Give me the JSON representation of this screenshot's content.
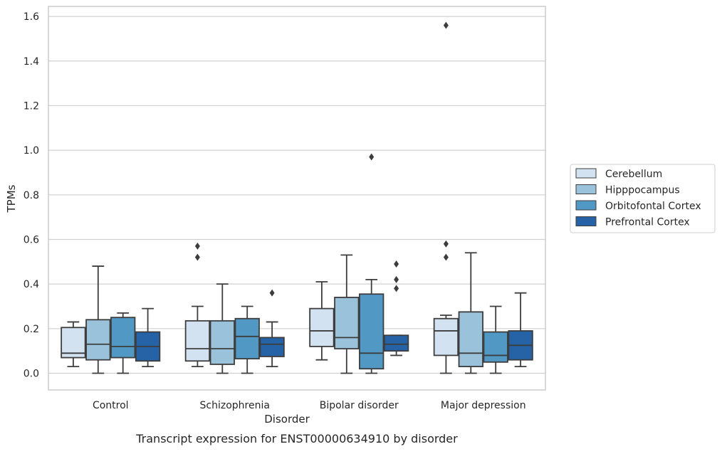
{
  "chart_data": {
    "type": "box",
    "caption": "Transcript expression for ENST00000634910 by disorder",
    "xlabel": "Disorder",
    "ylabel": "TPMs",
    "ylim": [
      -0.075,
      1.645
    ],
    "yticks": [
      0.0,
      0.2,
      0.4,
      0.6,
      0.8,
      1.0,
      1.2,
      1.4,
      1.6
    ],
    "ytick_labels": [
      "0.0",
      "0.2",
      "0.4",
      "0.6",
      "0.8",
      "1.0",
      "1.2",
      "1.4",
      "1.6"
    ],
    "grid": "horizontal",
    "legend_position": "right",
    "categories": [
      "Control",
      "Schizophrenia",
      "Bipolar disorder",
      "Major depression"
    ],
    "series": [
      {
        "name": "Cerebellum",
        "color": "#d3e2f0",
        "boxes": [
          {
            "whisker_low": 0.03,
            "q1": 0.07,
            "median": 0.09,
            "q3": 0.205,
            "whisker_high": 0.23,
            "outliers": []
          },
          {
            "whisker_low": 0.03,
            "q1": 0.055,
            "median": 0.11,
            "q3": 0.235,
            "whisker_high": 0.3,
            "outliers": [
              0.52,
              0.57
            ]
          },
          {
            "whisker_low": 0.06,
            "q1": 0.12,
            "median": 0.19,
            "q3": 0.29,
            "whisker_high": 0.41,
            "outliers": []
          },
          {
            "whisker_low": 0.0,
            "q1": 0.08,
            "median": 0.19,
            "q3": 0.245,
            "whisker_high": 0.26,
            "outliers": [
              0.52,
              0.58,
              1.56
            ]
          }
        ]
      },
      {
        "name": "Hipppocampus",
        "color": "#9ac2da",
        "boxes": [
          {
            "whisker_low": 0.0,
            "q1": 0.06,
            "median": 0.13,
            "q3": 0.24,
            "whisker_high": 0.48,
            "outliers": []
          },
          {
            "whisker_low": 0.0,
            "q1": 0.04,
            "median": 0.11,
            "q3": 0.235,
            "whisker_high": 0.4,
            "outliers": []
          },
          {
            "whisker_low": 0.0,
            "q1": 0.11,
            "median": 0.16,
            "q3": 0.34,
            "whisker_high": 0.53,
            "outliers": []
          },
          {
            "whisker_low": 0.0,
            "q1": 0.03,
            "median": 0.09,
            "q3": 0.275,
            "whisker_high": 0.54,
            "outliers": []
          }
        ]
      },
      {
        "name": "Orbitofontal Cortex",
        "color": "#5198c5",
        "boxes": [
          {
            "whisker_low": 0.0,
            "q1": 0.07,
            "median": 0.12,
            "q3": 0.25,
            "whisker_high": 0.27,
            "outliers": []
          },
          {
            "whisker_low": 0.0,
            "q1": 0.065,
            "median": 0.165,
            "q3": 0.245,
            "whisker_high": 0.3,
            "outliers": []
          },
          {
            "whisker_low": 0.0,
            "q1": 0.02,
            "median": 0.09,
            "q3": 0.355,
            "whisker_high": 0.42,
            "outliers": [
              0.97
            ]
          },
          {
            "whisker_low": 0.0,
            "q1": 0.05,
            "median": 0.08,
            "q3": 0.185,
            "whisker_high": 0.3,
            "outliers": []
          }
        ]
      },
      {
        "name": "Prefrontal Cortex",
        "color": "#2563a6",
        "boxes": [
          {
            "whisker_low": 0.03,
            "q1": 0.055,
            "median": 0.12,
            "q3": 0.185,
            "whisker_high": 0.29,
            "outliers": []
          },
          {
            "whisker_low": 0.03,
            "q1": 0.075,
            "median": 0.13,
            "q3": 0.16,
            "whisker_high": 0.23,
            "outliers": [
              0.36
            ]
          },
          {
            "whisker_low": 0.08,
            "q1": 0.1,
            "median": 0.13,
            "q3": 0.17,
            "whisker_high": 0.17,
            "outliers": [
              0.38,
              0.42,
              0.49
            ]
          },
          {
            "whisker_low": 0.03,
            "q1": 0.06,
            "median": 0.125,
            "q3": 0.19,
            "whisker_high": 0.36,
            "outliers": []
          }
        ]
      }
    ]
  }
}
